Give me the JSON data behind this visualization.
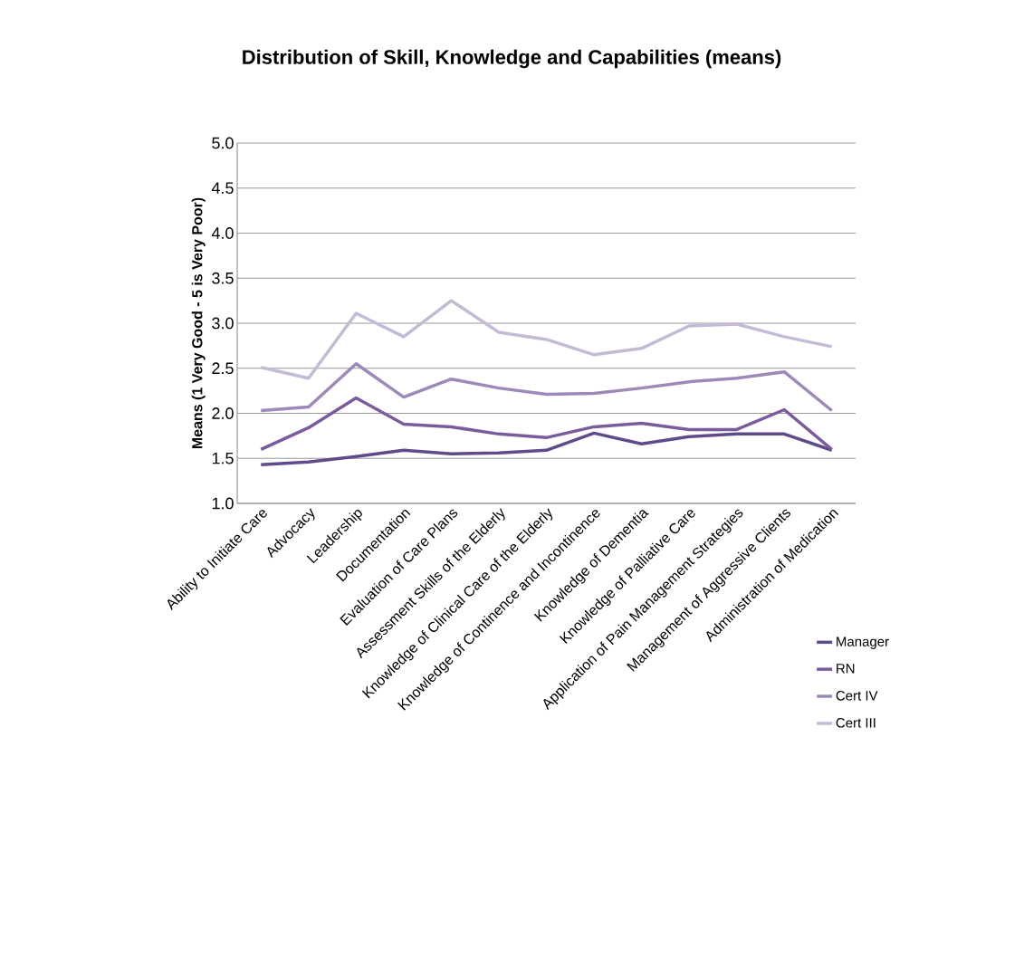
{
  "chart_data": {
    "type": "line",
    "title": "Distribution of Skill, Knowledge and Capabilities  (means)",
    "ylabel": "Means (1 Very Good - 5 is Very Poor)",
    "categories": [
      "Ability to Initiate Care",
      "Advocacy",
      "Leadership",
      "Documentation",
      "Evaluation of Care Plans",
      "Assessment Skills of the Elderly",
      "Knowledge of Clinical Care of the Elderly",
      "Knowledge of Continence and Incontinence",
      "Knowledge of Dementia",
      "Knowledge of Palliative Care",
      "Application of Pain Management Strategies",
      "Management of Aggressive Clients",
      "Administration of Medication"
    ],
    "series": [
      {
        "name": "Manager",
        "color": "#5f4b8b",
        "values": [
          1.43,
          1.46,
          1.52,
          1.59,
          1.55,
          1.56,
          1.59,
          1.78,
          1.66,
          1.74,
          1.77,
          1.77,
          1.59
        ]
      },
      {
        "name": "RN",
        "color": "#7a5c9e",
        "values": [
          1.6,
          1.84,
          2.17,
          1.88,
          1.85,
          1.77,
          1.73,
          1.85,
          1.89,
          1.82,
          1.82,
          2.04,
          1.6
        ]
      },
      {
        "name": "Cert IV",
        "color": "#9d89b8",
        "values": [
          2.03,
          2.07,
          2.55,
          2.18,
          2.38,
          2.28,
          2.21,
          2.22,
          2.28,
          2.35,
          2.39,
          2.46,
          2.03
        ]
      },
      {
        "name": "Cert III",
        "color": "#c5bad6",
        "values": [
          2.51,
          2.39,
          3.11,
          2.85,
          3.25,
          2.9,
          2.82,
          2.65,
          2.72,
          2.97,
          2.99,
          2.85,
          2.74
        ]
      }
    ],
    "ylim": [
      1.0,
      5.0
    ],
    "yticks": [
      {
        "value": 1.0,
        "label": "1.0"
      },
      {
        "value": 1.5,
        "label": "1.5"
      },
      {
        "value": 2.0,
        "label": "2.0"
      },
      {
        "value": 2.5,
        "label": "2.5"
      },
      {
        "value": 3.0,
        "label": "3.0"
      },
      {
        "value": 3.5,
        "label": "3.5"
      },
      {
        "value": 4.0,
        "label": "4.0"
      },
      {
        "value": 4.5,
        "label": "4.5"
      },
      {
        "value": 5.0,
        "label": "5.0"
      }
    ],
    "grid": "y",
    "legend": "right",
    "marker": "none",
    "line_style": "solid"
  }
}
